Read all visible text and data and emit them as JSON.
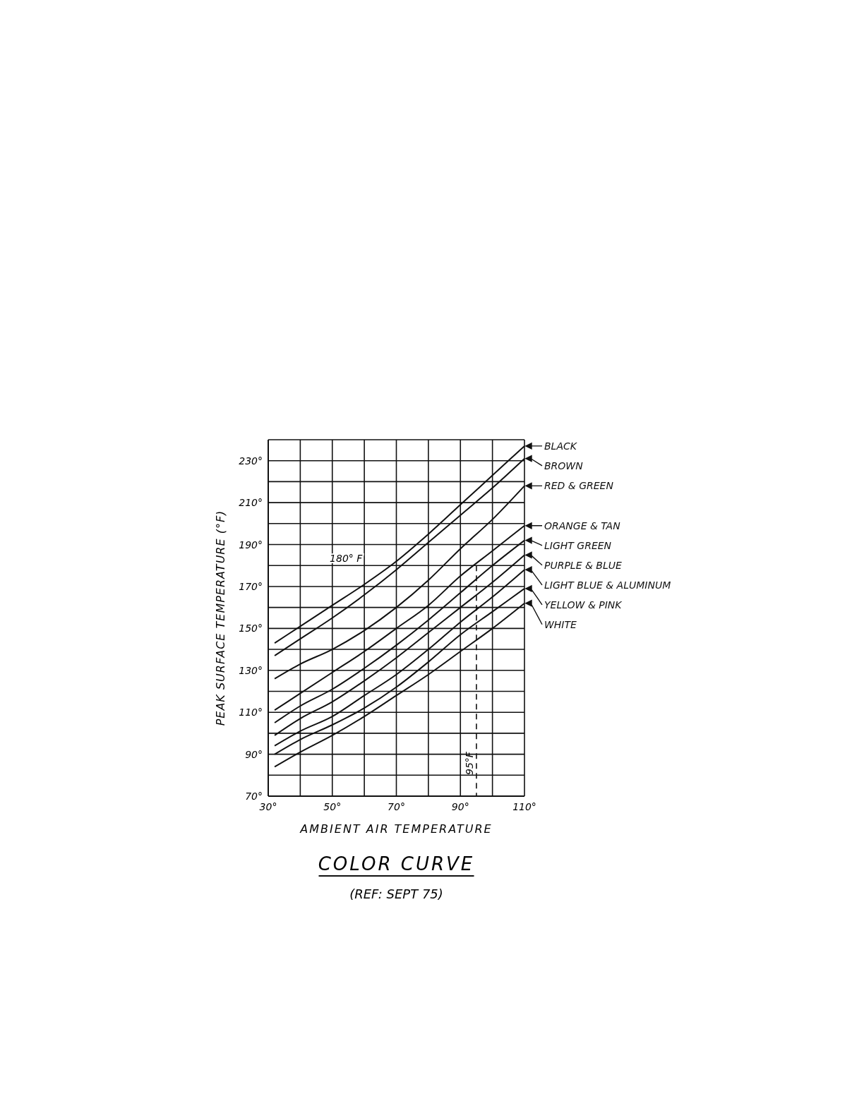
{
  "chart_data": {
    "type": "line",
    "title": "COLOR CURVE",
    "xlabel": "AMBIENT AIR TEMPERATURE",
    "ylabel": "PEAK SURFACE TEMPERATURE (°F)",
    "x": [
      32,
      40,
      50,
      60,
      70,
      80,
      90,
      100,
      110
    ],
    "series": [
      {
        "name": "BLACK",
        "color": "#111111",
        "values": [
          143,
          151,
          161,
          171,
          182,
          195,
          209,
          223,
          237
        ]
      },
      {
        "name": "BROWN",
        "color": "#111111",
        "values": [
          137,
          145,
          155,
          166,
          178,
          191,
          204,
          217,
          231
        ]
      },
      {
        "name": "RED & GREEN",
        "color": "#111111",
        "values": [
          126,
          133,
          140,
          149,
          160,
          173,
          188,
          202,
          218
        ]
      },
      {
        "name": "ORANGE & TAN",
        "color": "#111111",
        "values": [
          111,
          119,
          129,
          139,
          150,
          161,
          175,
          187,
          199
        ]
      },
      {
        "name": "LIGHT GREEN",
        "color": "#111111",
        "values": [
          105,
          113,
          121,
          131,
          142,
          154,
          167,
          180,
          192
        ]
      },
      {
        "name": "PURPLE & BLUE",
        "color": "#111111",
        "values": [
          99,
          107,
          115,
          125,
          136,
          148,
          160,
          172,
          185
        ]
      },
      {
        "name": "LIGHT BLUE & ALUMINUM",
        "color": "#111111",
        "values": [
          94,
          101,
          108,
          118,
          128,
          140,
          153,
          165,
          178
        ]
      },
      {
        "name": "YELLOW & PINK",
        "color": "#111111",
        "values": [
          90,
          97,
          104,
          112,
          122,
          134,
          147,
          158,
          169
        ]
      },
      {
        "name": "WHITE",
        "color": "#111111",
        "values": [
          84,
          91,
          99,
          108,
          118,
          128,
          139,
          150,
          162
        ]
      }
    ],
    "xlim": [
      30,
      110
    ],
    "ylim": [
      70,
      240
    ],
    "xticks": [
      {
        "value": 30,
        "label": "30°"
      },
      {
        "value": 40,
        "label": null
      },
      {
        "value": 50,
        "label": "50°"
      },
      {
        "value": 60,
        "label": null
      },
      {
        "value": 70,
        "label": "70°"
      },
      {
        "value": 80,
        "label": null
      },
      {
        "value": 90,
        "label": "90°"
      },
      {
        "value": 100,
        "label": null
      },
      {
        "value": 110,
        "label": "110°"
      }
    ],
    "yticks": [
      {
        "value": 70,
        "label": "70°"
      },
      {
        "value": 80,
        "label": null
      },
      {
        "value": 90,
        "label": "90°"
      },
      {
        "value": 100,
        "label": null
      },
      {
        "value": 110,
        "label": "110°"
      },
      {
        "value": 120,
        "label": null
      },
      {
        "value": 130,
        "label": "130°"
      },
      {
        "value": 140,
        "label": null
      },
      {
        "value": 150,
        "label": "150°"
      },
      {
        "value": 160,
        "label": null
      },
      {
        "value": 170,
        "label": "170°"
      },
      {
        "value": 180,
        "label": null
      },
      {
        "value": 190,
        "label": "190°"
      },
      {
        "value": 200,
        "label": null
      },
      {
        "value": 210,
        "label": "210°"
      },
      {
        "value": 220,
        "label": null
      },
      {
        "value": 230,
        "label": "230°"
      },
      {
        "value": 240,
        "label": null
      }
    ],
    "grid": true,
    "legend": "right",
    "marker": "none",
    "line_style": "solid",
    "ref_lines": [
      {
        "axis": "x",
        "value": 95,
        "label": "95°F",
        "line_style": "dashed",
        "color": "#111111"
      }
    ],
    "annotations": [
      "180° F",
      "(REF: SEPT 75)"
    ]
  }
}
